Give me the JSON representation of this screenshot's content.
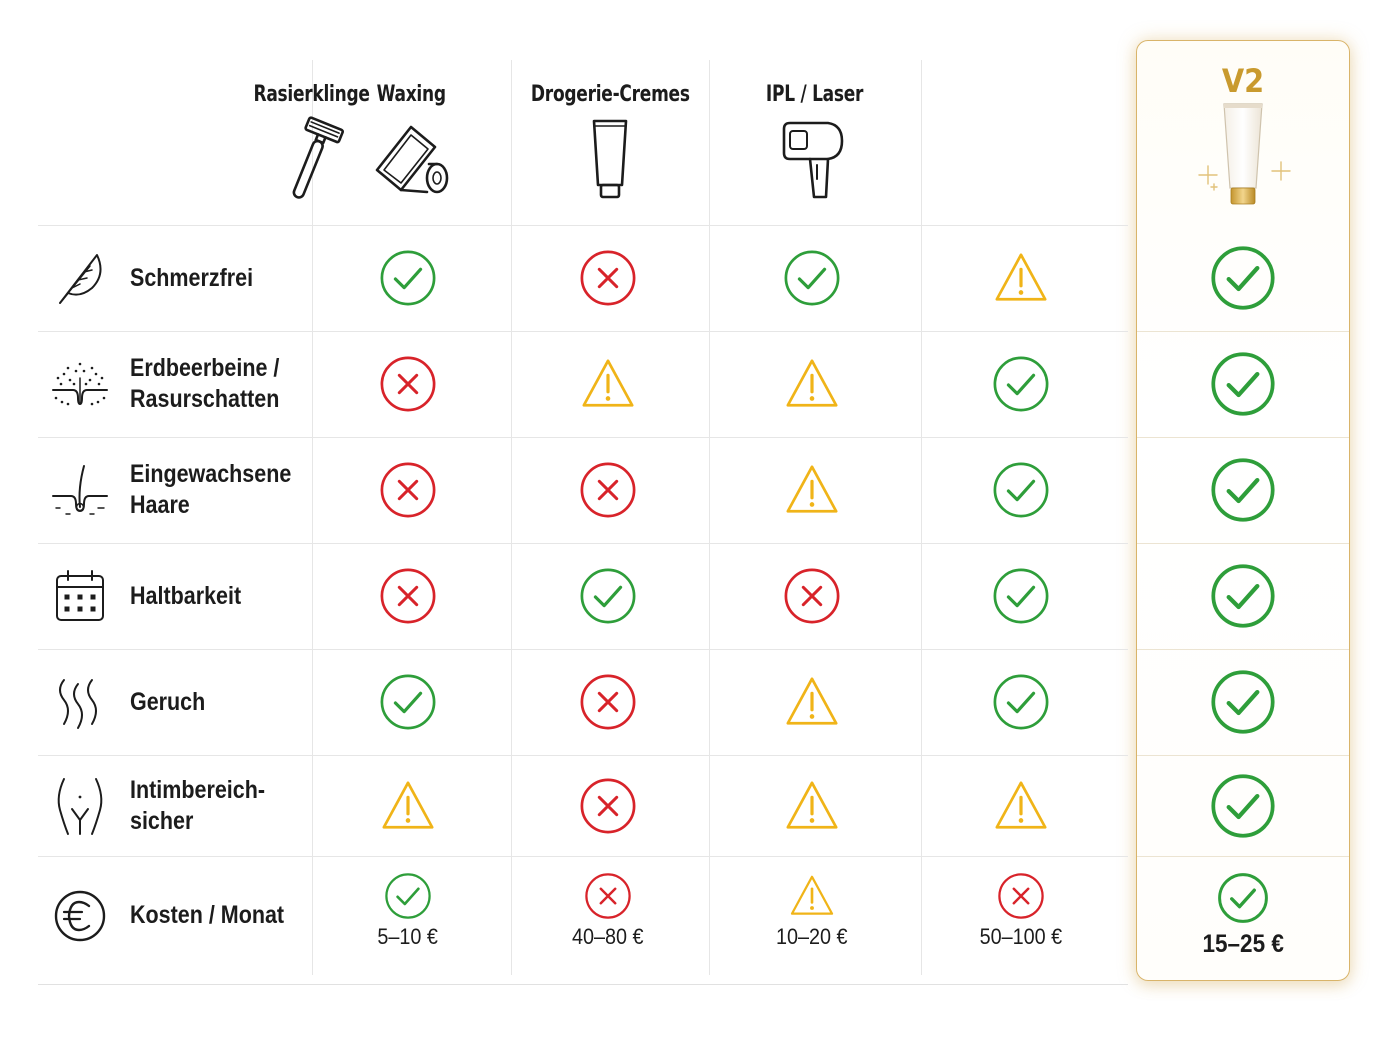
{
  "columns": [
    {
      "label": "Rasierklinge",
      "icon": "razor-icon"
    },
    {
      "label": "Waxing",
      "icon": "wax-strip-icon"
    },
    {
      "label": "Drogerie-Cremes",
      "icon": "cream-tube-icon"
    },
    {
      "label": "IPL / Laser",
      "icon": "ipl-device-icon"
    },
    {
      "label": "V2",
      "icon": "v2-tube-icon",
      "highlighted": true
    }
  ],
  "rows": [
    {
      "label_lines": [
        "Schmerzfrei"
      ],
      "icon": "feather-icon",
      "values": [
        "check",
        "cross",
        "check",
        "warning",
        "check"
      ]
    },
    {
      "label_lines": [
        "Erdbeerbeine /",
        "Rasurschatten"
      ],
      "icon": "skin-dots-icon",
      "values": [
        "cross",
        "warning",
        "warning",
        "check",
        "check"
      ]
    },
    {
      "label_lines": [
        "Eingewachsene",
        "Haare"
      ],
      "icon": "ingrown-hair-icon",
      "values": [
        "cross",
        "cross",
        "warning",
        "check",
        "check"
      ]
    },
    {
      "label_lines": [
        "Haltbarkeit"
      ],
      "icon": "calendar-icon",
      "values": [
        "cross",
        "check",
        "cross",
        "check",
        "check"
      ]
    },
    {
      "label_lines": [
        "Geruch"
      ],
      "icon": "smell-waves-icon",
      "values": [
        "check",
        "cross",
        "warning",
        "check",
        "check"
      ]
    },
    {
      "label_lines": [
        "Intimbereich-",
        "sicher"
      ],
      "icon": "body-outline-icon",
      "values": [
        "warning",
        "cross",
        "warning",
        "warning",
        "check"
      ]
    },
    {
      "label_lines": [
        "Kosten / Monat"
      ],
      "icon": "euro-icon",
      "values": [
        "check",
        "cross",
        "warning",
        "cross",
        "check"
      ],
      "costs": [
        "5–10 €",
        "40–80 €",
        "10–20 €",
        "50–100 €",
        "15–25 €"
      ]
    }
  ],
  "colors": {
    "check": "#2e9e3a",
    "cross": "#d8232a",
    "warning": "#f0b418",
    "accent_gold": "#c99a2e"
  }
}
